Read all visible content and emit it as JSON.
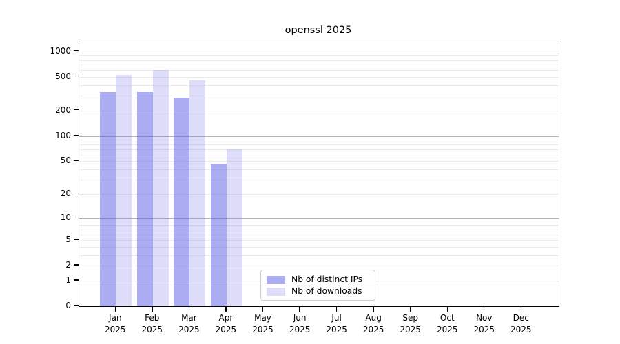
{
  "title": "openssl 2025",
  "chart_data": {
    "type": "bar",
    "title": "openssl 2025",
    "scale": "log1p",
    "categories": [
      "Jan",
      "Feb",
      "Mar",
      "Apr",
      "May",
      "Jun",
      "Jul",
      "Aug",
      "Sep",
      "Oct",
      "Nov",
      "Dec"
    ],
    "year": "2025",
    "series": [
      {
        "name": "Nb of distinct IPs",
        "color": "rgba(90,90,230,0.5)",
        "values": [
          330,
          334,
          284,
          47,
          0,
          0,
          0,
          0,
          0,
          0,
          0,
          0
        ]
      },
      {
        "name": "Nb of downloads",
        "color": "rgba(90,90,230,0.2)",
        "values": [
          525,
          597,
          452,
          70,
          0,
          0,
          0,
          0,
          0,
          0,
          0,
          0
        ]
      }
    ],
    "y_ticks": [
      1000,
      500,
      200,
      100,
      50,
      20,
      10,
      5,
      2,
      1,
      0
    ],
    "ylim": [
      0,
      1320
    ],
    "xlabel": "",
    "ylabel": "",
    "grid": "horizontal",
    "legend_position": "lower-center",
    "colors": {
      "bar_base": "#5a5ae6",
      "grid_major": "#b4b4b4",
      "grid_minor": "#ebebeb",
      "axis": "#000000",
      "legend_border": "#cccccc"
    }
  },
  "legend": {
    "entries": [
      "Nb of distinct IPs",
      "Nb of downloads"
    ]
  }
}
